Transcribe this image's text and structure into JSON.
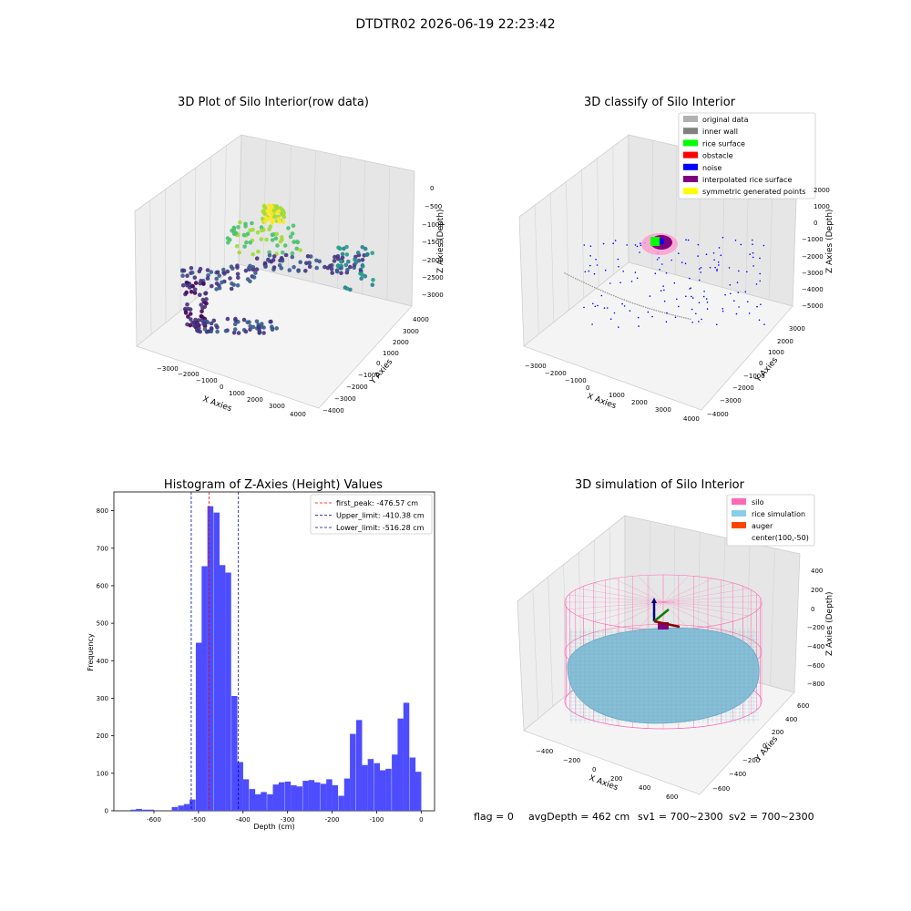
{
  "figure": {
    "suptitle": "DTDTR02 2026-06-19 22:23:42",
    "footer": {
      "flag": "flag = 0",
      "avg": "avgDepth = 462 cm",
      "sv1": "sv1 = 700~2300",
      "sv2": "sv2 = 700~2300"
    }
  },
  "colors": {
    "hist_bar": "#4d4dff",
    "peak": "#ff0000",
    "limit": "#0000aa",
    "silo": "#ff69b4",
    "rice": "#87ceeb",
    "auger": "#ff4500",
    "pane": "#f2f2f2",
    "grid": "#d9d9d9"
  },
  "chart_data": [
    {
      "type": "scatter3d",
      "title": "3D Plot of Silo Interior(row data)",
      "xlabel": "X Axies",
      "ylabel": "Y Axies",
      "zlabel": "Z Axies (Depth)",
      "xticks": [
        "−3000",
        "−2000",
        "−1000",
        "0",
        "1000",
        "2000",
        "3000",
        "4000"
      ],
      "yticks": [
        "4000",
        "3000",
        "2000",
        "1000",
        "0",
        "−1000",
        "−2000",
        "−3000",
        "−4000"
      ],
      "zticks": [
        "0",
        "−500",
        "−1000",
        "−1500",
        "−2000",
        "−2500",
        "−3000"
      ],
      "colormap": "viridis",
      "grid": true
    },
    {
      "type": "scatter3d",
      "title": "3D classify of Silo Interior",
      "xlabel": "X Axies",
      "ylabel": "Y Axies",
      "zlabel": "Z Axies (Depth)",
      "xticks": [
        "−3000",
        "−2000",
        "−1000",
        "0",
        "1000",
        "2000",
        "3000",
        "4000"
      ],
      "yticks": [
        "3000",
        "2000",
        "1000",
        "0",
        "−1000",
        "−2000",
        "−3000",
        "−4000"
      ],
      "zticks": [
        "2000",
        "1000",
        "0",
        "−1000",
        "−2000",
        "−3000",
        "−4000",
        "−5000"
      ],
      "legend_placement": "top-right",
      "legend": [
        {
          "label": "original data",
          "color": "#b0b0b0"
        },
        {
          "label": "inner wall",
          "color": "#808080"
        },
        {
          "label": "rice surface",
          "color": "#00ff00"
        },
        {
          "label": "obstacle",
          "color": "#ff0000"
        },
        {
          "label": "noise",
          "color": "#0000ff"
        },
        {
          "label": "interpolated rice surface",
          "color": "#800080"
        },
        {
          "label": "symmetric generated points",
          "color": "#ffff00"
        }
      ],
      "grid": true
    },
    {
      "type": "bar",
      "title": "Histogram of Z-Axies (Height) Values",
      "xlabel": "Depth (cm)",
      "ylabel": "Frequency",
      "xlim": [
        -690,
        30
      ],
      "ylim": [
        0,
        850
      ],
      "xticks": [
        -600,
        -500,
        -400,
        -300,
        -200,
        -100,
        0
      ],
      "yticks": [
        0,
        100,
        200,
        300,
        400,
        500,
        600,
        700,
        800
      ],
      "bin_width": 13.3,
      "bins": [
        {
          "x0": -653,
          "v": 3
        },
        {
          "x0": -640,
          "v": 5
        },
        {
          "x0": -626,
          "v": 3
        },
        {
          "x0": -613,
          "v": 3
        },
        {
          "x0": -560,
          "v": 10
        },
        {
          "x0": -546,
          "v": 14
        },
        {
          "x0": -533,
          "v": 18
        },
        {
          "x0": -520,
          "v": 30
        },
        {
          "x0": -506,
          "v": 448
        },
        {
          "x0": -493,
          "v": 652
        },
        {
          "x0": -480,
          "v": 812
        },
        {
          "x0": -466,
          "v": 795
        },
        {
          "x0": -453,
          "v": 655
        },
        {
          "x0": -440,
          "v": 635
        },
        {
          "x0": -426,
          "v": 306
        },
        {
          "x0": -413,
          "v": 130
        },
        {
          "x0": -400,
          "v": 84
        },
        {
          "x0": -386,
          "v": 58
        },
        {
          "x0": -373,
          "v": 44
        },
        {
          "x0": -360,
          "v": 50
        },
        {
          "x0": -346,
          "v": 44
        },
        {
          "x0": -333,
          "v": 70
        },
        {
          "x0": -320,
          "v": 76
        },
        {
          "x0": -306,
          "v": 78
        },
        {
          "x0": -293,
          "v": 68
        },
        {
          "x0": -280,
          "v": 65
        },
        {
          "x0": -266,
          "v": 80
        },
        {
          "x0": -253,
          "v": 82
        },
        {
          "x0": -240,
          "v": 76
        },
        {
          "x0": -226,
          "v": 72
        },
        {
          "x0": -213,
          "v": 84
        },
        {
          "x0": -200,
          "v": 68
        },
        {
          "x0": -186,
          "v": 40
        },
        {
          "x0": -173,
          "v": 86
        },
        {
          "x0": -160,
          "v": 205
        },
        {
          "x0": -146,
          "v": 242
        },
        {
          "x0": -133,
          "v": 122
        },
        {
          "x0": -120,
          "v": 138
        },
        {
          "x0": -106,
          "v": 127
        },
        {
          "x0": -93,
          "v": 108
        },
        {
          "x0": -80,
          "v": 112
        },
        {
          "x0": -66,
          "v": 150
        },
        {
          "x0": -53,
          "v": 246
        },
        {
          "x0": -40,
          "v": 288
        },
        {
          "x0": -26,
          "v": 142
        },
        {
          "x0": -13,
          "v": 104
        }
      ],
      "vlines": [
        {
          "label": "first_peak: -476.57 cm",
          "x": -476.57,
          "style": "peak"
        },
        {
          "label": "Upper_limit: -410.38 cm",
          "x": -410.38,
          "style": "limit"
        },
        {
          "label": "Lower_limit: -516.28 cm",
          "x": -516.28,
          "style": "limit"
        }
      ],
      "legend_placement": "top-right"
    },
    {
      "type": "surface3d",
      "title": "3D simulation of Silo Interior",
      "xlabel": "X Axies",
      "ylabel": "Y Axies",
      "zlabel": "Z Axies (Depth)",
      "xticks": [
        "−400",
        "−200",
        "0",
        "200",
        "400",
        "600"
      ],
      "yticks": [
        "600",
        "400",
        "200",
        "0",
        "−200",
        "−400",
        "−600"
      ],
      "zticks": [
        "400",
        "200",
        "0",
        "−200",
        "−400",
        "−600",
        "−800"
      ],
      "legend_placement": "top-right",
      "legend": [
        {
          "label": "silo",
          "color": "#ff69b4"
        },
        {
          "label": "rice simulation",
          "color": "#87ceeb"
        },
        {
          "label": "auger",
          "color": "#ff4500"
        },
        {
          "label": "center(100,-50)",
          "color": ""
        }
      ]
    }
  ]
}
